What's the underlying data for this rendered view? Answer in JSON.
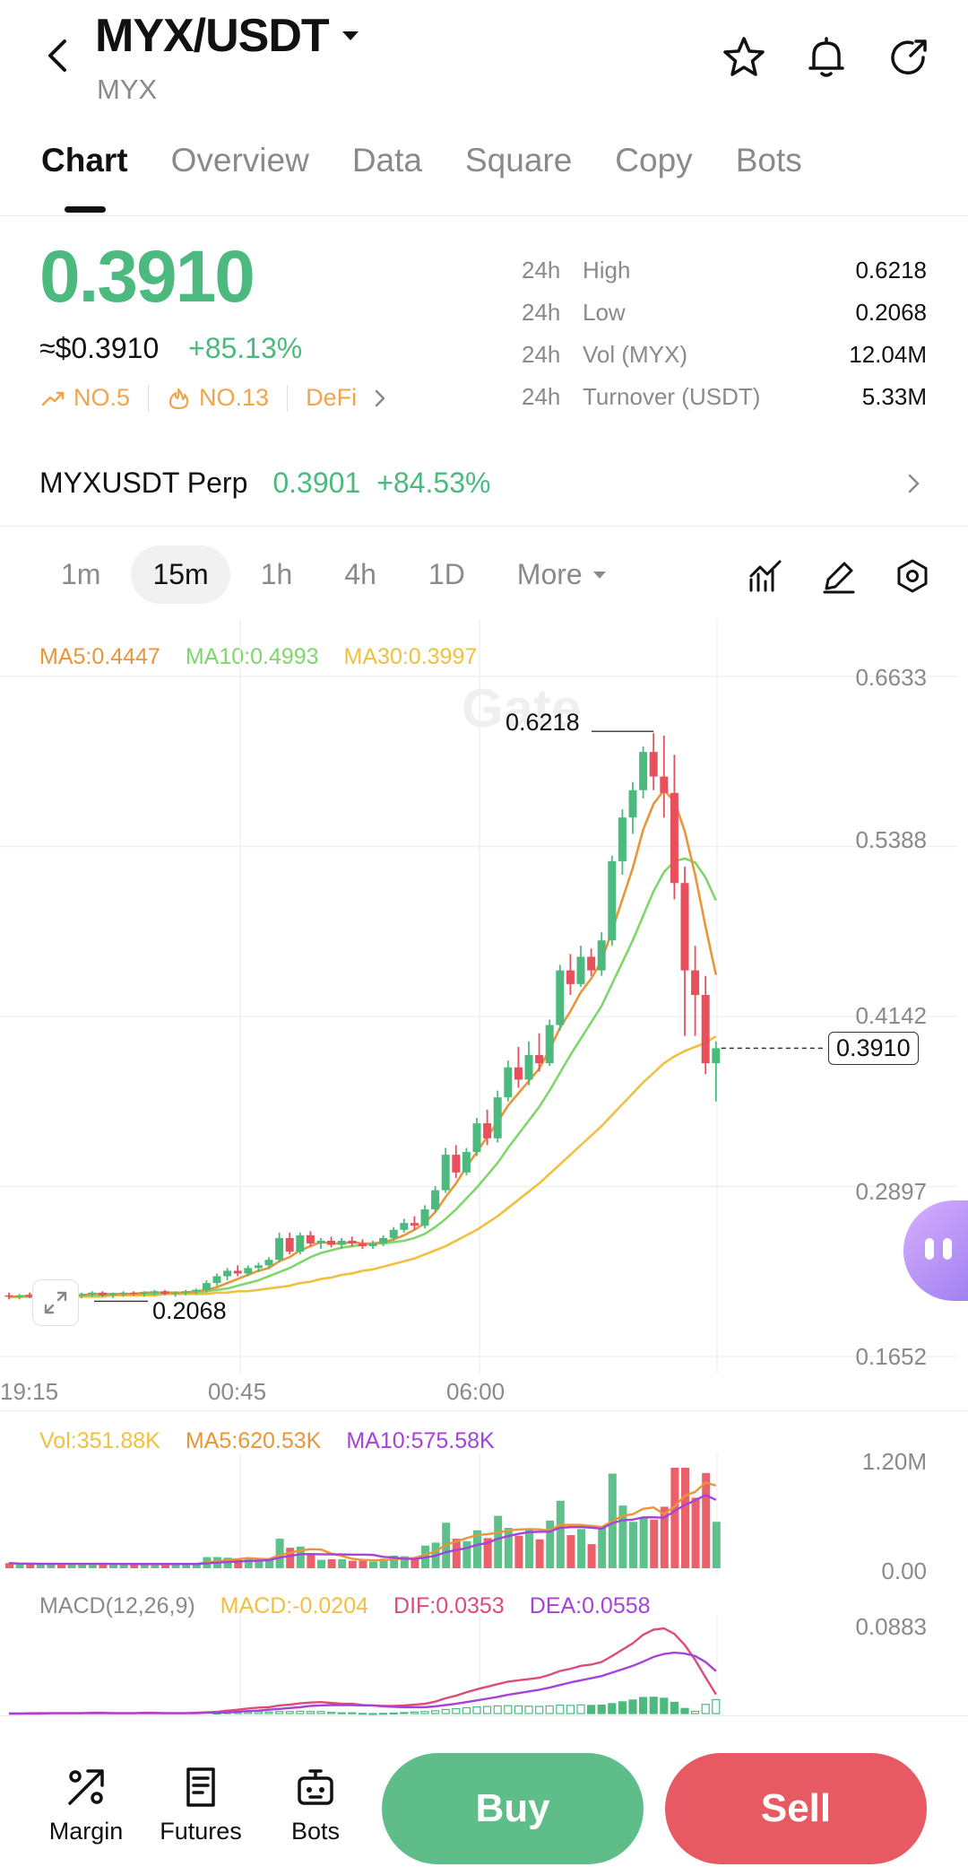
{
  "header": {
    "pair": "MYX/USDT",
    "base": "MYX"
  },
  "tabs": [
    "Chart",
    "Overview",
    "Data",
    "Square",
    "Copy",
    "Bots"
  ],
  "ticker": {
    "price": "0.3910",
    "usd_price": "≈$0.3910",
    "change": "+85.13%",
    "tags": [
      "NO.5",
      "NO.13",
      "DeFi"
    ],
    "stats": [
      {
        "period": "24h",
        "name": "High",
        "value": "0.6218"
      },
      {
        "period": "24h",
        "name": "Low",
        "value": "0.2068"
      },
      {
        "period": "24h",
        "name": "Vol (MYX)",
        "value": "12.04M"
      },
      {
        "period": "24h",
        "name": "Turnover (USDT)",
        "value": "5.33M"
      }
    ]
  },
  "perp": {
    "name": "MYXUSDT Perp",
    "price": "0.3901",
    "change": "+84.53%"
  },
  "intervals": [
    "1m",
    "15m",
    "1h",
    "4h",
    "1D",
    "More"
  ],
  "chart": {
    "ma_legend": {
      "ma5": "MA5:0.4447",
      "ma10": "MA10:0.4993",
      "ma30": "MA30:0.3997"
    },
    "y_ticks": [
      "0.6633",
      "0.5388",
      "0.4142",
      "0.2897",
      "0.1652"
    ],
    "x_ticks": [
      "19:15",
      "00:45",
      "06:00"
    ],
    "high_label": "0.6218",
    "low_label": "0.2068",
    "last_price": "0.3910",
    "colors": {
      "up": "#4cba7f",
      "down": "#e8505b",
      "ma5": "#e8963a",
      "ma10": "#7fd66a",
      "ma30": "#f0c040"
    },
    "candles": [
      {
        "o": 0.21,
        "h": 0.212,
        "l": 0.207,
        "c": 0.209
      },
      {
        "o": 0.209,
        "h": 0.211,
        "l": 0.207,
        "c": 0.21
      },
      {
        "o": 0.21,
        "h": 0.212,
        "l": 0.208,
        "c": 0.209
      },
      {
        "o": 0.209,
        "h": 0.211,
        "l": 0.207,
        "c": 0.21
      },
      {
        "o": 0.21,
        "h": 0.212,
        "l": 0.208,
        "c": 0.211
      },
      {
        "o": 0.211,
        "h": 0.212,
        "l": 0.208,
        "c": 0.209
      },
      {
        "o": 0.209,
        "h": 0.211,
        "l": 0.207,
        "c": 0.21
      },
      {
        "o": 0.21,
        "h": 0.212,
        "l": 0.208,
        "c": 0.211
      },
      {
        "o": 0.211,
        "h": 0.213,
        "l": 0.209,
        "c": 0.212
      },
      {
        "o": 0.212,
        "h": 0.213,
        "l": 0.209,
        "c": 0.21
      },
      {
        "o": 0.21,
        "h": 0.212,
        "l": 0.208,
        "c": 0.211
      },
      {
        "o": 0.211,
        "h": 0.213,
        "l": 0.209,
        "c": 0.212
      },
      {
        "o": 0.212,
        "h": 0.213,
        "l": 0.21,
        "c": 0.211
      },
      {
        "o": 0.211,
        "h": 0.213,
        "l": 0.209,
        "c": 0.212
      },
      {
        "o": 0.212,
        "h": 0.214,
        "l": 0.21,
        "c": 0.213
      },
      {
        "o": 0.213,
        "h": 0.214,
        "l": 0.21,
        "c": 0.211
      },
      {
        "o": 0.211,
        "h": 0.213,
        "l": 0.209,
        "c": 0.212
      },
      {
        "o": 0.212,
        "h": 0.214,
        "l": 0.21,
        "c": 0.213
      },
      {
        "o": 0.213,
        "h": 0.215,
        "l": 0.211,
        "c": 0.214
      },
      {
        "o": 0.214,
        "h": 0.221,
        "l": 0.212,
        "c": 0.219
      },
      {
        "o": 0.219,
        "h": 0.226,
        "l": 0.217,
        "c": 0.224
      },
      {
        "o": 0.224,
        "h": 0.23,
        "l": 0.221,
        "c": 0.228
      },
      {
        "o": 0.228,
        "h": 0.232,
        "l": 0.224,
        "c": 0.226
      },
      {
        "o": 0.226,
        "h": 0.232,
        "l": 0.224,
        "c": 0.23
      },
      {
        "o": 0.23,
        "h": 0.234,
        "l": 0.227,
        "c": 0.232
      },
      {
        "o": 0.232,
        "h": 0.238,
        "l": 0.23,
        "c": 0.236
      },
      {
        "o": 0.236,
        "h": 0.256,
        "l": 0.234,
        "c": 0.252
      },
      {
        "o": 0.252,
        "h": 0.256,
        "l": 0.24,
        "c": 0.242
      },
      {
        "o": 0.242,
        "h": 0.256,
        "l": 0.24,
        "c": 0.254
      },
      {
        "o": 0.254,
        "h": 0.257,
        "l": 0.246,
        "c": 0.248
      },
      {
        "o": 0.248,
        "h": 0.252,
        "l": 0.244,
        "c": 0.25
      },
      {
        "o": 0.25,
        "h": 0.253,
        "l": 0.245,
        "c": 0.247
      },
      {
        "o": 0.247,
        "h": 0.252,
        "l": 0.244,
        "c": 0.25
      },
      {
        "o": 0.25,
        "h": 0.253,
        "l": 0.246,
        "c": 0.248
      },
      {
        "o": 0.248,
        "h": 0.251,
        "l": 0.244,
        "c": 0.246
      },
      {
        "o": 0.246,
        "h": 0.25,
        "l": 0.244,
        "c": 0.248
      },
      {
        "o": 0.248,
        "h": 0.254,
        "l": 0.246,
        "c": 0.252
      },
      {
        "o": 0.252,
        "h": 0.26,
        "l": 0.25,
        "c": 0.258
      },
      {
        "o": 0.258,
        "h": 0.266,
        "l": 0.256,
        "c": 0.263
      },
      {
        "o": 0.263,
        "h": 0.268,
        "l": 0.258,
        "c": 0.261
      },
      {
        "o": 0.261,
        "h": 0.276,
        "l": 0.259,
        "c": 0.273
      },
      {
        "o": 0.273,
        "h": 0.29,
        "l": 0.271,
        "c": 0.287
      },
      {
        "o": 0.287,
        "h": 0.318,
        "l": 0.285,
        "c": 0.313
      },
      {
        "o": 0.313,
        "h": 0.32,
        "l": 0.296,
        "c": 0.3
      },
      {
        "o": 0.3,
        "h": 0.318,
        "l": 0.298,
        "c": 0.315
      },
      {
        "o": 0.315,
        "h": 0.34,
        "l": 0.312,
        "c": 0.336
      },
      {
        "o": 0.336,
        "h": 0.346,
        "l": 0.32,
        "c": 0.325
      },
      {
        "o": 0.325,
        "h": 0.36,
        "l": 0.322,
        "c": 0.355
      },
      {
        "o": 0.355,
        "h": 0.382,
        "l": 0.352,
        "c": 0.377
      },
      {
        "o": 0.377,
        "h": 0.392,
        "l": 0.362,
        "c": 0.368
      },
      {
        "o": 0.368,
        "h": 0.396,
        "l": 0.364,
        "c": 0.386
      },
      {
        "o": 0.386,
        "h": 0.402,
        "l": 0.374,
        "c": 0.38
      },
      {
        "o": 0.38,
        "h": 0.412,
        "l": 0.378,
        "c": 0.408
      },
      {
        "o": 0.408,
        "h": 0.452,
        "l": 0.404,
        "c": 0.448
      },
      {
        "o": 0.448,
        "h": 0.46,
        "l": 0.43,
        "c": 0.438
      },
      {
        "o": 0.438,
        "h": 0.466,
        "l": 0.436,
        "c": 0.458
      },
      {
        "o": 0.458,
        "h": 0.464,
        "l": 0.444,
        "c": 0.448
      },
      {
        "o": 0.448,
        "h": 0.476,
        "l": 0.444,
        "c": 0.47
      },
      {
        "o": 0.47,
        "h": 0.532,
        "l": 0.466,
        "c": 0.528
      },
      {
        "o": 0.528,
        "h": 0.566,
        "l": 0.518,
        "c": 0.56
      },
      {
        "o": 0.56,
        "h": 0.586,
        "l": 0.548,
        "c": 0.58
      },
      {
        "o": 0.58,
        "h": 0.612,
        "l": 0.574,
        "c": 0.608
      },
      {
        "o": 0.608,
        "h": 0.6218,
        "l": 0.58,
        "c": 0.59
      },
      {
        "o": 0.59,
        "h": 0.62,
        "l": 0.56,
        "c": 0.578
      },
      {
        "o": 0.578,
        "h": 0.606,
        "l": 0.5,
        "c": 0.512
      },
      {
        "o": 0.512,
        "h": 0.524,
        "l": 0.4,
        "c": 0.448
      },
      {
        "o": 0.448,
        "h": 0.466,
        "l": 0.4,
        "c": 0.43
      },
      {
        "o": 0.43,
        "h": 0.444,
        "l": 0.372,
        "c": 0.38
      },
      {
        "o": 0.38,
        "h": 0.396,
        "l": 0.352,
        "c": 0.391
      }
    ],
    "ma5": [
      0.209,
      0.209,
      0.21,
      0.21,
      0.21,
      0.21,
      0.21,
      0.21,
      0.211,
      0.211,
      0.211,
      0.211,
      0.211,
      0.212,
      0.212,
      0.212,
      0.212,
      0.212,
      0.213,
      0.214,
      0.216,
      0.219,
      0.222,
      0.225,
      0.228,
      0.23,
      0.235,
      0.238,
      0.243,
      0.246,
      0.249,
      0.248,
      0.248,
      0.249,
      0.248,
      0.248,
      0.249,
      0.251,
      0.254,
      0.258,
      0.263,
      0.271,
      0.282,
      0.292,
      0.304,
      0.315,
      0.326,
      0.337,
      0.349,
      0.358,
      0.367,
      0.376,
      0.39,
      0.406,
      0.418,
      0.432,
      0.442,
      0.455,
      0.477,
      0.5,
      0.523,
      0.551,
      0.57,
      0.58,
      0.572,
      0.55,
      0.518,
      0.48,
      0.4447
    ],
    "ma10": [
      0.209,
      0.209,
      0.209,
      0.209,
      0.21,
      0.21,
      0.21,
      0.21,
      0.21,
      0.21,
      0.211,
      0.211,
      0.211,
      0.211,
      0.211,
      0.212,
      0.212,
      0.212,
      0.212,
      0.213,
      0.214,
      0.215,
      0.217,
      0.219,
      0.221,
      0.224,
      0.227,
      0.23,
      0.234,
      0.238,
      0.241,
      0.243,
      0.245,
      0.246,
      0.247,
      0.248,
      0.248,
      0.249,
      0.25,
      0.252,
      0.255,
      0.26,
      0.266,
      0.273,
      0.281,
      0.289,
      0.298,
      0.307,
      0.318,
      0.328,
      0.338,
      0.348,
      0.36,
      0.373,
      0.386,
      0.398,
      0.41,
      0.422,
      0.438,
      0.454,
      0.47,
      0.488,
      0.506,
      0.52,
      0.528,
      0.53,
      0.527,
      0.516,
      0.4993
    ],
    "ma30": [
      0.209,
      0.209,
      0.209,
      0.209,
      0.209,
      0.209,
      0.209,
      0.209,
      0.209,
      0.209,
      0.21,
      0.21,
      0.21,
      0.21,
      0.21,
      0.211,
      0.211,
      0.211,
      0.211,
      0.211,
      0.212,
      0.212,
      0.213,
      0.213,
      0.214,
      0.215,
      0.216,
      0.217,
      0.219,
      0.22,
      0.222,
      0.223,
      0.225,
      0.226,
      0.228,
      0.229,
      0.231,
      0.233,
      0.235,
      0.237,
      0.24,
      0.243,
      0.246,
      0.25,
      0.254,
      0.258,
      0.263,
      0.268,
      0.274,
      0.28,
      0.286,
      0.292,
      0.299,
      0.306,
      0.313,
      0.32,
      0.327,
      0.334,
      0.342,
      0.35,
      0.358,
      0.366,
      0.373,
      0.38,
      0.385,
      0.389,
      0.392,
      0.395,
      0.3997
    ],
    "y_min": 0.1652,
    "y_max": 0.6633
  },
  "volume": {
    "legend": {
      "vol": "Vol:351.88K",
      "ma5": "MA5:620.53K",
      "ma10": "MA10:575.58K"
    },
    "y_ticks": [
      "1.20M",
      "0.00"
    ],
    "y_max": 1.2
  },
  "macd": {
    "legend": {
      "title": "MACD(12,26,9)",
      "macd": "MACD:-0.0204",
      "dif": "DIF:0.0353",
      "dea": "DEA:0.0558"
    },
    "y_ticks": [
      "0.0883"
    ]
  },
  "bottom_nav": [
    {
      "label": "Margin",
      "icon": "margin-icon"
    },
    {
      "label": "Futures",
      "icon": "futures-icon"
    },
    {
      "label": "Bots",
      "icon": "bots-icon"
    }
  ],
  "actions": {
    "buy": "Buy",
    "sell": "Sell"
  }
}
